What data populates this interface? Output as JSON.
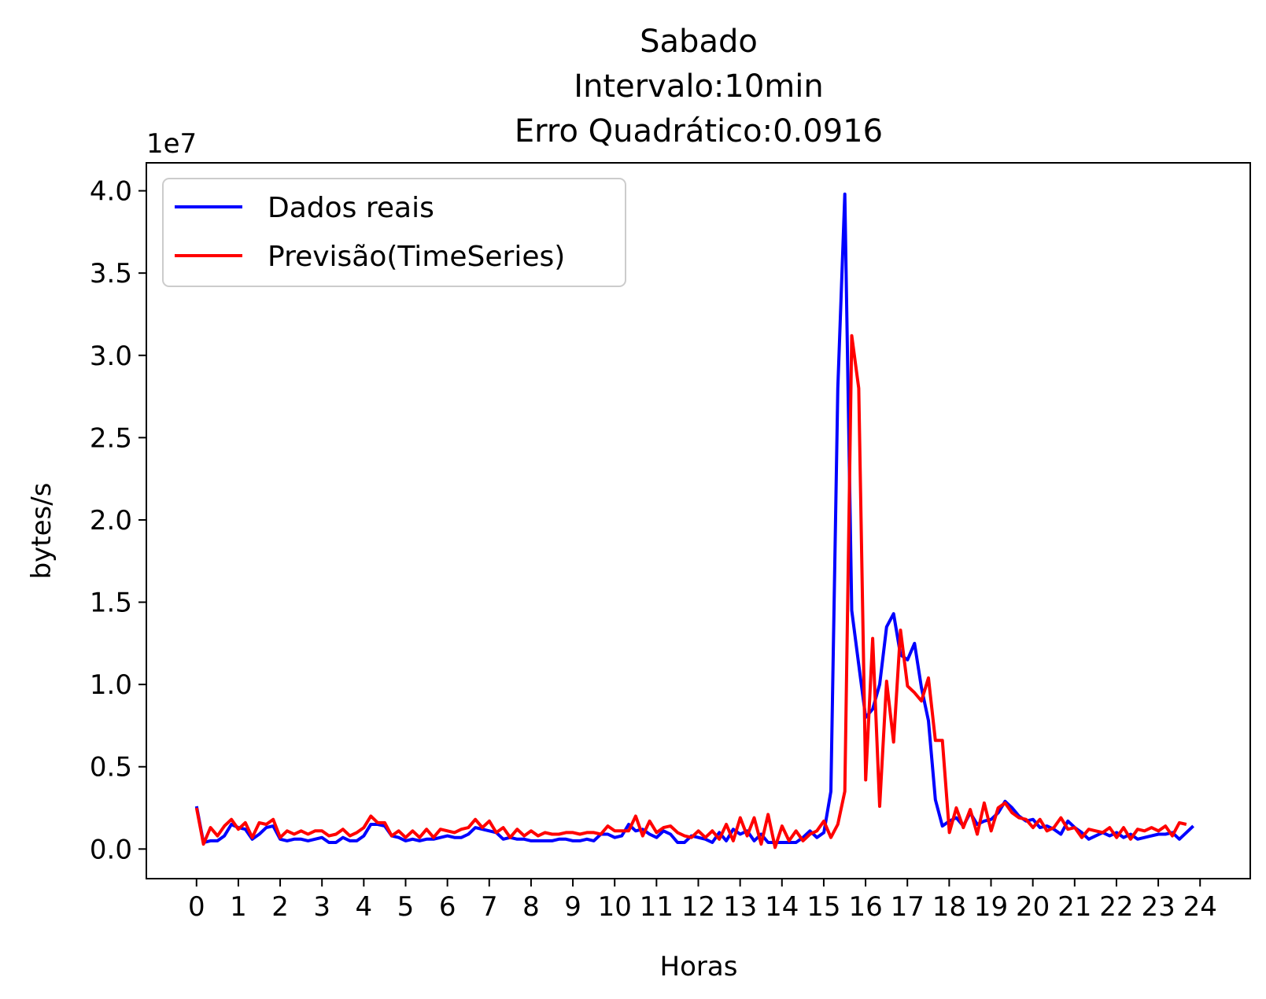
{
  "chart_data": {
    "type": "line",
    "title_lines": [
      "Sabado",
      "Intervalo:10min",
      "Erro Quadrático:0.0916"
    ],
    "xlabel": "Horas",
    "ylabel": "bytes/s",
    "y_offset_label": "1e7",
    "y_multiplier": 10000000,
    "xlim": [
      -1.2,
      25.2
    ],
    "ylim": [
      -0.18,
      4.17
    ],
    "x_ticks": [
      0,
      1,
      2,
      3,
      4,
      5,
      6,
      7,
      8,
      9,
      10,
      11,
      12,
      13,
      14,
      15,
      16,
      17,
      18,
      19,
      20,
      21,
      22,
      23,
      24
    ],
    "y_ticks": [
      0.0,
      0.5,
      1.0,
      1.5,
      2.0,
      2.5,
      3.0,
      3.5,
      4.0
    ],
    "y_tick_labels": [
      "0.0",
      "0.5",
      "1.0",
      "1.5",
      "2.0",
      "2.5",
      "3.0",
      "3.5",
      "4.0"
    ],
    "legend_position": "top-left",
    "grid": false,
    "x_step_hours": 0.1667,
    "series": [
      {
        "name": "Dados reais",
        "color": "#0000ff",
        "values": [
          0.26,
          0.04,
          0.05,
          0.05,
          0.08,
          0.15,
          0.13,
          0.12,
          0.06,
          0.09,
          0.13,
          0.14,
          0.06,
          0.05,
          0.06,
          0.06,
          0.05,
          0.06,
          0.07,
          0.04,
          0.04,
          0.07,
          0.05,
          0.05,
          0.08,
          0.15,
          0.15,
          0.14,
          0.08,
          0.07,
          0.05,
          0.06,
          0.05,
          0.06,
          0.06,
          0.07,
          0.08,
          0.07,
          0.07,
          0.09,
          0.13,
          0.12,
          0.11,
          0.1,
          0.06,
          0.07,
          0.06,
          0.06,
          0.05,
          0.05,
          0.05,
          0.05,
          0.06,
          0.06,
          0.05,
          0.05,
          0.06,
          0.05,
          0.09,
          0.09,
          0.07,
          0.08,
          0.15,
          0.11,
          0.12,
          0.09,
          0.07,
          0.11,
          0.09,
          0.04,
          0.04,
          0.08,
          0.07,
          0.06,
          0.04,
          0.1,
          0.05,
          0.12,
          0.09,
          0.11,
          0.05,
          0.09,
          0.04,
          0.04,
          0.04,
          0.04,
          0.04,
          0.07,
          0.11,
          0.07,
          0.1,
          0.35,
          2.8,
          3.98,
          1.45,
          1.12,
          0.8,
          0.85,
          1.0,
          1.35,
          1.43,
          1.18,
          1.15,
          1.25,
          0.98,
          0.78,
          0.3,
          0.14,
          0.17,
          0.19,
          0.14,
          0.22,
          0.15,
          0.17,
          0.18,
          0.22,
          0.29,
          0.25,
          0.2,
          0.17,
          0.18,
          0.13,
          0.14,
          0.12,
          0.09,
          0.17,
          0.13,
          0.1,
          0.06,
          0.08,
          0.1,
          0.08,
          0.1,
          0.07,
          0.09,
          0.06,
          0.07,
          0.08,
          0.09,
          0.09,
          0.1,
          0.06,
          0.1,
          0.14
        ]
      },
      {
        "name": "Previsão(TimeSeries)",
        "color": "#ff0000",
        "values": [
          0.25,
          0.03,
          0.13,
          0.08,
          0.14,
          0.18,
          0.12,
          0.16,
          0.07,
          0.16,
          0.15,
          0.18,
          0.07,
          0.11,
          0.09,
          0.11,
          0.09,
          0.11,
          0.11,
          0.08,
          0.09,
          0.12,
          0.08,
          0.1,
          0.13,
          0.2,
          0.16,
          0.16,
          0.08,
          0.11,
          0.07,
          0.11,
          0.07,
          0.12,
          0.07,
          0.12,
          0.11,
          0.1,
          0.12,
          0.13,
          0.18,
          0.13,
          0.17,
          0.1,
          0.13,
          0.07,
          0.12,
          0.08,
          0.11,
          0.08,
          0.1,
          0.09,
          0.09,
          0.1,
          0.1,
          0.09,
          0.1,
          0.1,
          0.09,
          0.14,
          0.11,
          0.11,
          0.11,
          0.2,
          0.08,
          0.17,
          0.1,
          0.13,
          0.14,
          0.1,
          0.08,
          0.07,
          0.11,
          0.07,
          0.11,
          0.06,
          0.15,
          0.05,
          0.19,
          0.08,
          0.19,
          0.03,
          0.21,
          0.01,
          0.14,
          0.05,
          0.11,
          0.05,
          0.09,
          0.11,
          0.17,
          0.07,
          0.15,
          0.35,
          3.12,
          2.8,
          0.42,
          1.28,
          0.26,
          1.02,
          0.65,
          1.33,
          0.99,
          0.95,
          0.9,
          1.04,
          0.66,
          0.66,
          0.1,
          0.25,
          0.13,
          0.24,
          0.09,
          0.28,
          0.11,
          0.25,
          0.28,
          0.22,
          0.19,
          0.18,
          0.13,
          0.18,
          0.11,
          0.13,
          0.19,
          0.12,
          0.13,
          0.07,
          0.12,
          0.11,
          0.1,
          0.13,
          0.07,
          0.13,
          0.06,
          0.12,
          0.11,
          0.13,
          0.11,
          0.14,
          0.08,
          0.16,
          0.15
        ]
      }
    ]
  }
}
